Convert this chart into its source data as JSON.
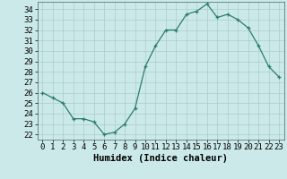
{
  "x": [
    0,
    1,
    2,
    3,
    4,
    5,
    6,
    7,
    8,
    9,
    10,
    11,
    12,
    13,
    14,
    15,
    16,
    17,
    18,
    19,
    20,
    21,
    22,
    23
  ],
  "y": [
    26.0,
    25.5,
    25.0,
    23.5,
    23.5,
    23.2,
    22.0,
    22.2,
    23.0,
    24.5,
    28.5,
    30.5,
    32.0,
    32.0,
    33.5,
    33.8,
    34.5,
    33.2,
    33.5,
    33.0,
    32.2,
    30.5,
    28.5,
    27.5
  ],
  "title": "",
  "xlabel": "Humidex (Indice chaleur)",
  "ylabel": "",
  "xlim": [
    -0.5,
    23.5
  ],
  "ylim": [
    21.5,
    34.7
  ],
  "yticks": [
    22,
    23,
    24,
    25,
    26,
    27,
    28,
    29,
    30,
    31,
    32,
    33,
    34
  ],
  "xticks": [
    0,
    1,
    2,
    3,
    4,
    5,
    6,
    7,
    8,
    9,
    10,
    11,
    12,
    13,
    14,
    15,
    16,
    17,
    18,
    19,
    20,
    21,
    22,
    23
  ],
  "line_color": "#2a7d6e",
  "marker_color": "#2a7d6e",
  "bg_color": "#cce9e9",
  "grid_color": "#aacccc",
  "xlabel_fontsize": 7.5,
  "tick_fontsize": 6.5
}
